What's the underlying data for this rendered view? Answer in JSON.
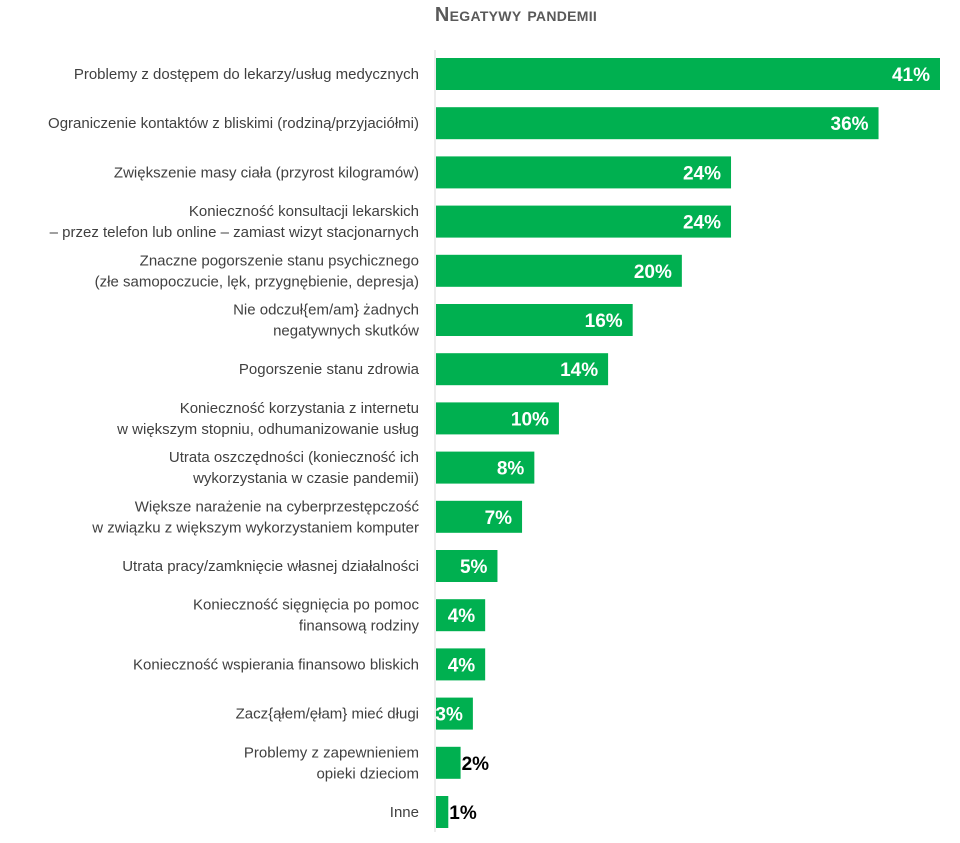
{
  "chart_data": {
    "type": "bar",
    "orientation": "horizontal",
    "title": "Negatywy pandemii",
    "bar_color": "#00B050",
    "value_label_color_inside": "#ffffff",
    "value_label_color_outside": "#000000",
    "xlim": [
      0,
      41
    ],
    "categories": [
      [
        "Problemy z dostępem do lekarzy/usług medycznych"
      ],
      [
        "Ograniczenie kontaktów z bliskimi (rodziną/przyjaciółmi)"
      ],
      [
        "Zwiększenie masy ciała (przyrost kilogramów)"
      ],
      [
        "Konieczność konsultacji lekarskich",
        "– przez telefon lub online – zamiast wizyt stacjonarnych"
      ],
      [
        "Znaczne pogorszenie stanu psychicznego",
        "(złe samopoczucie, lęk, przygnębienie, depresja)"
      ],
      [
        "Nie odczuł{em/am} żadnych",
        "negatywnych skutków"
      ],
      [
        "Pogorszenie stanu zdrowia"
      ],
      [
        "Konieczność korzystania z internetu",
        "w większym stopniu, odhumanizowanie usług"
      ],
      [
        "Utrata oszczędności (konieczność ich",
        "wykorzystania w czasie pandemii)"
      ],
      [
        "Większe narażenie na cyberprzestępczość",
        "w związku z większym wykorzystaniem komputer"
      ],
      [
        "Utrata pracy/zamknięcie własnej działalności"
      ],
      [
        "Konieczność sięgnięcia po pomoc",
        "finansową rodziny"
      ],
      [
        "Konieczność wspierania finansowo bliskich"
      ],
      [
        "Zacz{ąłem/ęłam} mieć długi"
      ],
      [
        "Problemy z zapewnieniem",
        "opieki dzieciom"
      ],
      [
        "Inne"
      ]
    ],
    "values": [
      41,
      36,
      24,
      24,
      20,
      16,
      14,
      10,
      8,
      7,
      5,
      4,
      4,
      3,
      2,
      1
    ],
    "value_labels": [
      "41%",
      "36%",
      "24%",
      "24%",
      "20%",
      "16%",
      "14%",
      "10%",
      "8%",
      "7%",
      "5%",
      "4%",
      "4%",
      "3%",
      "2%",
      "1%"
    ]
  }
}
